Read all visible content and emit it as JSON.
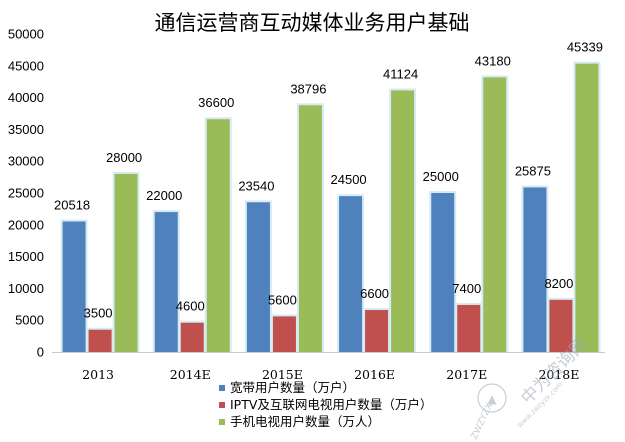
{
  "chart_data": {
    "type": "bar",
    "title": "通信运营商互动媒体业务用户基础",
    "categories": [
      "2013",
      "2014E",
      "2015E",
      "2016E",
      "2017E",
      "2018E"
    ],
    "ylim": [
      0,
      50000
    ],
    "yticks": [
      "0",
      "5000",
      "10000",
      "15000",
      "20000",
      "25000",
      "30000",
      "35000",
      "40000",
      "45000",
      "50000"
    ],
    "grid": false,
    "legend_position": "bottom-center",
    "series": [
      {
        "name": "宽带用户数量（万户）",
        "values": [
          20518,
          22000,
          23540,
          24500,
          25000,
          25875
        ],
        "color": "#4f81bd"
      },
      {
        "name": "IPTV及互联网电视用户数量（万户）",
        "values": [
          3500,
          4600,
          5600,
          6600,
          7400,
          8200
        ],
        "color": "#c0504d"
      },
      {
        "name": "手机电视用户数量（万人）",
        "values": [
          28000,
          36600,
          38796,
          41124,
          43180,
          45339
        ],
        "color": "#9bbb59"
      }
    ]
  },
  "watermark": {
    "main": "中为咨询网",
    "url": "www.zwzyzx.com",
    "badge": "ZWZYZX"
  }
}
